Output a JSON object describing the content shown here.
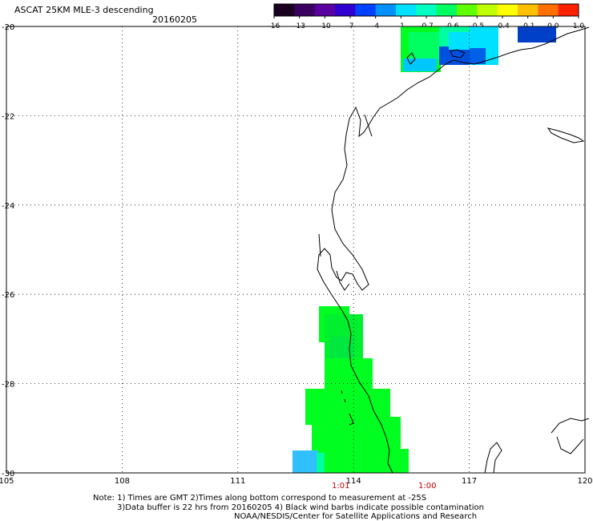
{
  "header": {
    "title": "ASCAT 25KM MLE-3 descending",
    "date": "20160205"
  },
  "colorbar": {
    "labels": [
      "-16",
      "-13",
      "-10",
      "-7",
      "-4",
      "-1",
      "-0.7",
      "-0.6",
      "-0.5",
      "-0.4",
      "-0.1",
      "0.0",
      "1.0"
    ],
    "colors": [
      "#1a0020",
      "#3a0060",
      "#5a00a0",
      "#3000d0",
      "#0040ff",
      "#0090ff",
      "#00e0ff",
      "#00ffc0",
      "#00ff60",
      "#60ff00",
      "#c0ff00",
      "#ffff00",
      "#ffc000",
      "#ff7000",
      "#ff2000"
    ]
  },
  "axes": {
    "y_ticks": [
      "-20",
      "-22",
      "-24",
      "-26",
      "-28",
      "-30"
    ],
    "x_ticks": [
      "105",
      "108",
      "111",
      "114",
      "117",
      "120"
    ]
  },
  "time_labels": [
    "1:01",
    "1:00"
  ],
  "notes": {
    "line1": "Note: 1) Times are GMT 2)Times along bottom correspond to measurement at -25S",
    "line2": "3)Data buffer is 22 hrs from 20160205 4) Black wind barbs indicate possible contamination",
    "line3": "NOAA/NESDIS/Center for Satellite Applications and Research"
  },
  "swath_colors": {
    "green": "#00ff20",
    "green_dark": "#00e840",
    "teal": "#00ffa0",
    "cyan": "#00e0ff",
    "sky": "#40c0ff",
    "blue": "#0050e0",
    "blue_dark": "#0040c8"
  }
}
